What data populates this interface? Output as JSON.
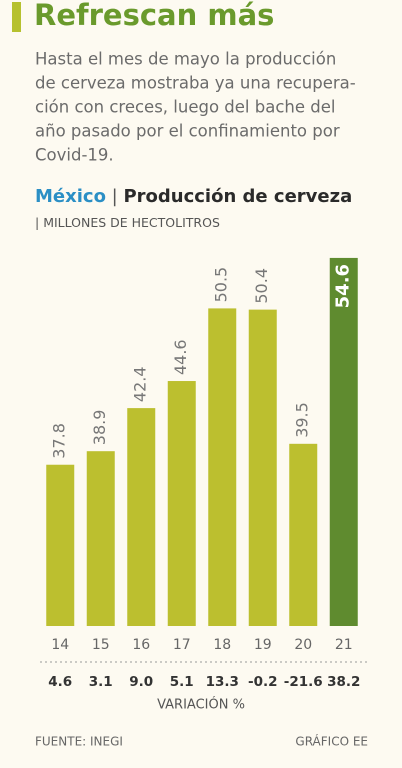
{
  "header": {
    "title": "Refrescan más",
    "body": [
      "Hasta el mes de mayo la producción",
      "de cerveza mostraba ya una recupera-",
      "ción con creces, luego del bache del",
      "año pasado por el confinamiento por",
      "Covid-19."
    ]
  },
  "chart_data": {
    "type": "bar",
    "title_region": "México",
    "title": "Producción de cerveza",
    "subtitle": "MILLONES DE HECTOLITROS",
    "categories": [
      "14",
      "15",
      "16",
      "17",
      "18",
      "19",
      "20",
      "21"
    ],
    "values": [
      37.8,
      38.9,
      42.4,
      44.6,
      50.5,
      50.4,
      39.5,
      54.6
    ],
    "colors": [
      "#bcbf2f",
      "#bcbf2f",
      "#bcbf2f",
      "#bcbf2f",
      "#bcbf2f",
      "#bcbf2f",
      "#bcbf2f",
      "#5f8b2f"
    ],
    "ylim": [
      24.7,
      55
    ],
    "variation": {
      "label": "VARIACIÓN %",
      "values": [
        4.6,
        3.1,
        9.0,
        5.1,
        13.3,
        -0.2,
        -21.6,
        38.2
      ],
      "value_labels": [
        "4.6",
        "3.1",
        "9.0",
        "5.1",
        "13.3",
        "-0.2",
        "-21.6",
        "38.2"
      ]
    }
  },
  "footer": {
    "source": "FUENTE: INEGI",
    "credit": "GRÁFICO EE"
  }
}
